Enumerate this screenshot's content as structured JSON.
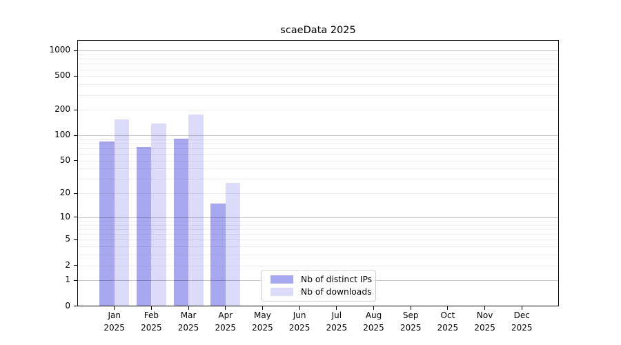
{
  "chart_data": {
    "type": "bar",
    "title": "scaeData 2025",
    "categories": [
      "Jan",
      "Feb",
      "Mar",
      "Apr",
      "May",
      "Jun",
      "Jul",
      "Aug",
      "Sep",
      "Oct",
      "Nov",
      "Dec"
    ],
    "category_year": "2025",
    "series": [
      {
        "name": "Nb of distinct IPs",
        "color": "#a8a8f0",
        "values": [
          85,
          73,
          91,
          15,
          0,
          0,
          0,
          0,
          0,
          0,
          0,
          0
        ]
      },
      {
        "name": "Nb of downloads",
        "color": "#dcdcfa",
        "values": [
          156,
          138,
          175,
          27,
          0,
          0,
          0,
          0,
          0,
          0,
          0,
          0
        ]
      }
    ],
    "xlabel": "",
    "ylabel": "",
    "y_scale": "log1p",
    "y_ticks": [
      0,
      1,
      2,
      5,
      10,
      20,
      50,
      100,
      200,
      500,
      1000
    ],
    "y_major_gridlines": [
      1,
      10,
      100,
      1000
    ],
    "y_minor_gridlines": [
      2,
      3,
      4,
      5,
      6,
      7,
      8,
      9,
      20,
      30,
      40,
      50,
      60,
      70,
      80,
      90,
      200,
      300,
      400,
      500,
      600,
      700,
      800,
      900
    ],
    "ylim": [
      0,
      1300
    ],
    "grid": true,
    "legend_position": "bottom-center",
    "grid_major_color": "#c7c7c7",
    "grid_minor_color": "#ececec",
    "axis_color": "#000000"
  }
}
